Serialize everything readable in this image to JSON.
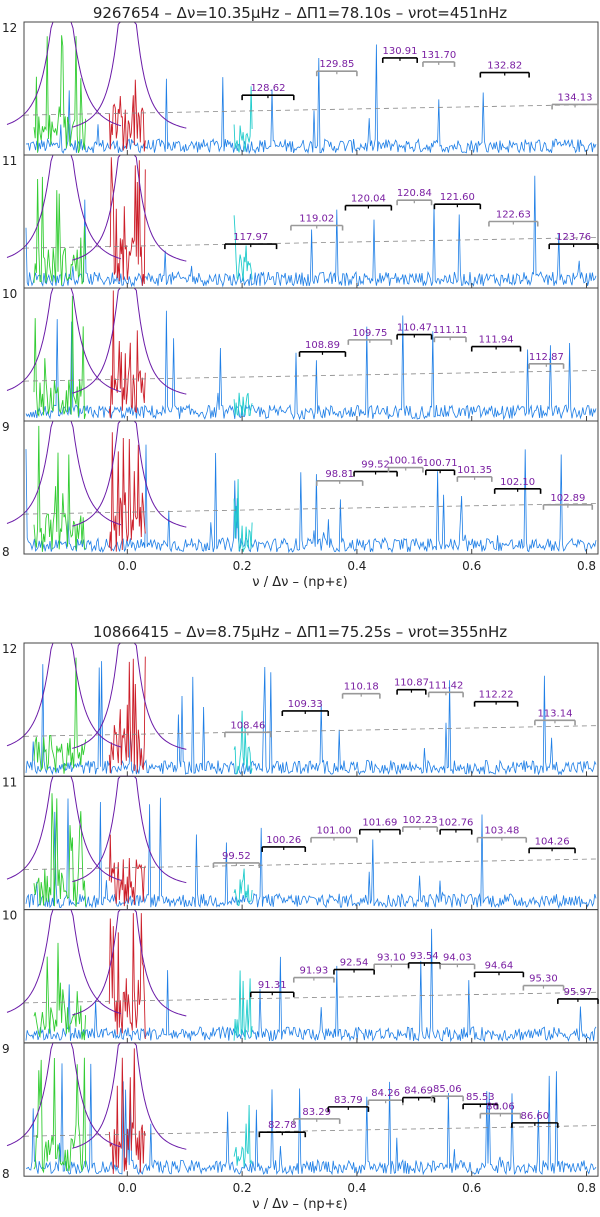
{
  "chart_data": [
    {
      "type": "line",
      "title": "9267654 – Δν=10.35μHz – ΔΠ1=78.10s – νrot=451nHz",
      "xlabel": "ν / Δν – (np+ε)",
      "xlim": [
        -0.18,
        0.82
      ],
      "xticks": [
        "0.0",
        "0.2",
        "0.4",
        "0.6",
        "0.8"
      ],
      "yticks": [
        "12",
        "11",
        "10",
        "9",
        "8"
      ],
      "rows": [
        {
          "y_top": 12,
          "y_bottom": 11,
          "labels": [
            {
              "text": "128.62",
              "x0": 0.2,
              "x1": 0.29,
              "level": 0.45,
              "style": "black"
            },
            {
              "text": "129.85",
              "x0": 0.33,
              "x1": 0.4,
              "level": 0.63,
              "style": "gray"
            },
            {
              "text": "130.91",
              "x0": 0.445,
              "x1": 0.505,
              "level": 0.73,
              "style": "black"
            },
            {
              "text": "131.70",
              "x0": 0.515,
              "x1": 0.57,
              "level": 0.7,
              "style": "gray"
            },
            {
              "text": "132.82",
              "x0": 0.615,
              "x1": 0.7,
              "level": 0.62,
              "style": "black"
            },
            {
              "text": "134.13",
              "x0": 0.74,
              "x1": 0.82,
              "level": 0.38,
              "style": "gray"
            }
          ]
        },
        {
          "y_top": 11,
          "y_bottom": 10,
          "labels": [
            {
              "text": "117.97",
              "x0": 0.17,
              "x1": 0.26,
              "level": 0.33,
              "style": "black"
            },
            {
              "text": "119.02",
              "x0": 0.285,
              "x1": 0.375,
              "level": 0.47,
              "style": "gray"
            },
            {
              "text": "120.04",
              "x0": 0.38,
              "x1": 0.46,
              "level": 0.62,
              "style": "black"
            },
            {
              "text": "120.84",
              "x0": 0.47,
              "x1": 0.53,
              "level": 0.66,
              "style": "gray"
            },
            {
              "text": "121.60",
              "x0": 0.535,
              "x1": 0.615,
              "level": 0.63,
              "style": "black"
            },
            {
              "text": "122.63",
              "x0": 0.63,
              "x1": 0.715,
              "level": 0.5,
              "style": "gray"
            },
            {
              "text": "123.76",
              "x0": 0.735,
              "x1": 0.82,
              "level": 0.33,
              "style": "black"
            }
          ]
        },
        {
          "y_top": 10,
          "y_bottom": 9,
          "labels": [
            {
              "text": "108.89",
              "x0": 0.3,
              "x1": 0.38,
              "level": 0.52,
              "style": "black"
            },
            {
              "text": "109.75",
              "x0": 0.385,
              "x1": 0.46,
              "level": 0.61,
              "style": "gray"
            },
            {
              "text": "110.47",
              "x0": 0.47,
              "x1": 0.53,
              "level": 0.65,
              "style": "black"
            },
            {
              "text": "111.11",
              "x0": 0.535,
              "x1": 0.59,
              "level": 0.63,
              "style": "gray"
            },
            {
              "text": "111.94",
              "x0": 0.6,
              "x1": 0.685,
              "level": 0.56,
              "style": "black"
            },
            {
              "text": "112.87",
              "x0": 0.7,
              "x1": 0.76,
              "level": 0.43,
              "style": "gray"
            }
          ]
        },
        {
          "y_top": 9,
          "y_bottom": 8,
          "labels": [
            {
              "text": "98.81",
              "x0": 0.33,
              "x1": 0.41,
              "level": 0.55,
              "style": "gray"
            },
            {
              "text": "99.52",
              "x0": 0.395,
              "x1": 0.47,
              "level": 0.62,
              "style": "black"
            },
            {
              "text": "100.16",
              "x0": 0.455,
              "x1": 0.515,
              "level": 0.65,
              "style": "gray"
            },
            {
              "text": "100.71",
              "x0": 0.52,
              "x1": 0.57,
              "level": 0.63,
              "style": "black"
            },
            {
              "text": "101.35",
              "x0": 0.575,
              "x1": 0.635,
              "level": 0.58,
              "style": "gray"
            },
            {
              "text": "102.10",
              "x0": 0.64,
              "x1": 0.72,
              "level": 0.49,
              "style": "black"
            },
            {
              "text": "102.89",
              "x0": 0.725,
              "x1": 0.81,
              "level": 0.37,
              "style": "gray"
            }
          ]
        }
      ]
    },
    {
      "type": "line",
      "title": "10866415 – Δν=8.75μHz – ΔΠ1=75.25s – νrot=355nHz",
      "xlabel": "ν / Δν – (np+ε)",
      "xlim": [
        -0.18,
        0.82
      ],
      "xticks": [
        "0.0",
        "0.2",
        "0.4",
        "0.6",
        "0.8"
      ],
      "yticks": [
        "12",
        "11",
        "10",
        "9",
        "8"
      ],
      "rows": [
        {
          "y_top": 12,
          "y_bottom": 11,
          "labels": [
            {
              "text": "108.46",
              "x0": 0.17,
              "x1": 0.25,
              "level": 0.33,
              "style": "gray"
            },
            {
              "text": "109.33",
              "x0": 0.27,
              "x1": 0.35,
              "level": 0.49,
              "style": "black"
            },
            {
              "text": "110.18",
              "x0": 0.375,
              "x1": 0.44,
              "level": 0.62,
              "style": "gray"
            },
            {
              "text": "110.87",
              "x0": 0.47,
              "x1": 0.52,
              "level": 0.65,
              "style": "black"
            },
            {
              "text": "111.42",
              "x0": 0.525,
              "x1": 0.585,
              "level": 0.63,
              "style": "gray"
            },
            {
              "text": "112.22",
              "x0": 0.605,
              "x1": 0.68,
              "level": 0.56,
              "style": "black"
            },
            {
              "text": "113.14",
              "x0": 0.71,
              "x1": 0.78,
              "level": 0.42,
              "style": "gray"
            }
          ]
        },
        {
          "y_top": 11,
          "y_bottom": 10,
          "labels": [
            {
              "text": "99.52",
              "x0": 0.15,
              "x1": 0.23,
              "level": 0.35,
              "style": "gray"
            },
            {
              "text": "100.26",
              "x0": 0.235,
              "x1": 0.31,
              "level": 0.47,
              "style": "black"
            },
            {
              "text": "101.00",
              "x0": 0.32,
              "x1": 0.4,
              "level": 0.54,
              "style": "gray"
            },
            {
              "text": "101.69",
              "x0": 0.405,
              "x1": 0.475,
              "level": 0.6,
              "style": "black"
            },
            {
              "text": "102.23",
              "x0": 0.48,
              "x1": 0.54,
              "level": 0.62,
              "style": "gray"
            },
            {
              "text": "102.76",
              "x0": 0.545,
              "x1": 0.6,
              "level": 0.6,
              "style": "black"
            },
            {
              "text": "103.48",
              "x0": 0.61,
              "x1": 0.695,
              "level": 0.54,
              "style": "gray"
            },
            {
              "text": "104.26",
              "x0": 0.7,
              "x1": 0.78,
              "level": 0.46,
              "style": "black"
            }
          ]
        },
        {
          "y_top": 10,
          "y_bottom": 9,
          "labels": [
            {
              "text": "91.31",
              "x0": 0.215,
              "x1": 0.29,
              "level": 0.38,
              "style": "black"
            },
            {
              "text": "91.93",
              "x0": 0.29,
              "x1": 0.36,
              "level": 0.49,
              "style": "gray"
            },
            {
              "text": "92.54",
              "x0": 0.36,
              "x1": 0.43,
              "level": 0.55,
              "style": "black"
            },
            {
              "text": "93.10",
              "x0": 0.43,
              "x1": 0.49,
              "level": 0.59,
              "style": "gray"
            },
            {
              "text": "93.54",
              "x0": 0.49,
              "x1": 0.545,
              "level": 0.6,
              "style": "black"
            },
            {
              "text": "94.03",
              "x0": 0.545,
              "x1": 0.605,
              "level": 0.59,
              "style": "gray"
            },
            {
              "text": "94.64",
              "x0": 0.605,
              "x1": 0.69,
              "level": 0.53,
              "style": "black"
            },
            {
              "text": "95.30",
              "x0": 0.69,
              "x1": 0.76,
              "level": 0.43,
              "style": "gray"
            },
            {
              "text": "95.97",
              "x0": 0.75,
              "x1": 0.82,
              "level": 0.33,
              "style": "black"
            }
          ]
        },
        {
          "y_top": 9,
          "y_bottom": 8,
          "labels": [
            {
              "text": "82.78",
              "x0": 0.23,
              "x1": 0.31,
              "level": 0.33,
              "style": "black"
            },
            {
              "text": "83.29",
              "x0": 0.29,
              "x1": 0.37,
              "level": 0.43,
              "style": "gray"
            },
            {
              "text": "83.79",
              "x0": 0.35,
              "x1": 0.42,
              "level": 0.52,
              "style": "black"
            },
            {
              "text": "84.26",
              "x0": 0.42,
              "x1": 0.48,
              "level": 0.57,
              "style": "gray"
            },
            {
              "text": "84.69",
              "x0": 0.48,
              "x1": 0.535,
              "level": 0.59,
              "style": "black"
            },
            {
              "text": "85.06",
              "x0": 0.53,
              "x1": 0.585,
              "level": 0.6,
              "style": "gray"
            },
            {
              "text": "85.53",
              "x0": 0.585,
              "x1": 0.645,
              "level": 0.54,
              "style": "black"
            },
            {
              "text": "86.06",
              "x0": 0.615,
              "x1": 0.685,
              "level": 0.47,
              "style": "gray"
            },
            {
              "text": "86.60",
              "x0": 0.67,
              "x1": 0.75,
              "level": 0.4,
              "style": "black"
            }
          ]
        }
      ]
    }
  ],
  "colors": {
    "spectrum": "#1f7fe6",
    "l2": "#33cc33",
    "l0": "#cc1f2a",
    "l3": "#22cccc",
    "envelope": "#6b1ca8",
    "dashed": "#888888",
    "bracket_black": "#000000",
    "bracket_gray": "#999999",
    "label": "#7a1fa2",
    "frame": "#444444"
  }
}
